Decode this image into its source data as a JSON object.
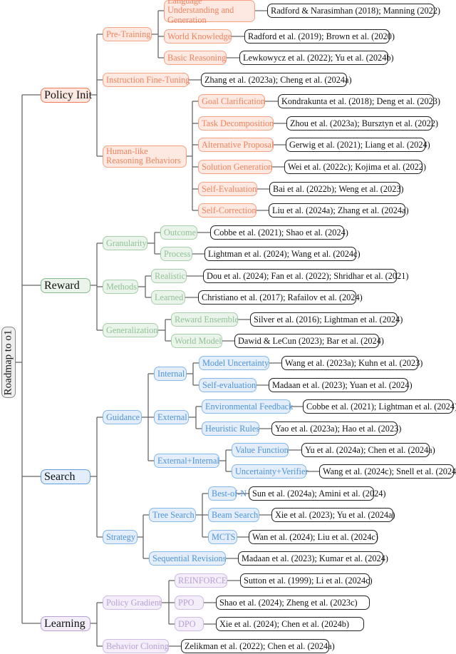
{
  "root": {
    "label": "Roadmap to o1"
  },
  "colors": {
    "policy": {
      "border": "#f4a283",
      "fill": "#fde9e1",
      "text": "#f0825e",
      "l1border": "#f07a55"
    },
    "reward": {
      "border": "#a6cfa9",
      "fill": "#eaf4eb",
      "text": "#92c197",
      "l1border": "#86bb8b"
    },
    "search": {
      "border": "#86b8e8",
      "fill": "#e3eefa",
      "text": "#4f93d9",
      "l1border": "#5f9fe0"
    },
    "learning": {
      "border": "#cdbbe2",
      "fill": "#f3eef9",
      "text": "#b6a1d4",
      "l1border": "#b7a0d6"
    },
    "line": "#666666"
  },
  "branches": [
    {
      "label": "Policy Init",
      "theme": "policy",
      "children": [
        {
          "label": "Pre-Training",
          "children": [
            {
              "label": "Language Understanding and Generation",
              "citations": "Radford & Narasimhan (2018); Manning (2022)"
            },
            {
              "label": "World Knowledge",
              "citations": "Radford et al. (2019); Brown et al. (2020)"
            },
            {
              "label": "Basic Reasoning",
              "citations": "Lewkowycz et al. (2022); Yu et al. (2024b)"
            }
          ]
        },
        {
          "label": "Instruction Fine-Tuning",
          "citations": "Zhang et al. (2023a); Cheng et al. (2024a)"
        },
        {
          "label": "Human-like Reasoning Behaviors",
          "children": [
            {
              "label": "Goal Clarification",
              "citations": "Kondrakunta et al. (2018); Deng et al. (2023)"
            },
            {
              "label": "Task Decomposition",
              "citations": "Zhou et al. (2023a); Bursztyn et al. (2022)"
            },
            {
              "label": "Alternative Proposal",
              "citations": "Gerwig et al. (2021); Liang et al. (2024)"
            },
            {
              "label": "Solution Generation",
              "citations": "Wei et al. (2022c); Kojima et al. (2022)"
            },
            {
              "label": "Self-Evaluation",
              "citations": "Bai et al. (2022b); Weng et al. (2023)"
            },
            {
              "label": "Self-Correction",
              "citations": "Liu et al. (2024a); Zhang et al. (2024a)"
            }
          ]
        }
      ]
    },
    {
      "label": "Reward",
      "theme": "reward",
      "children": [
        {
          "label": "Granularity",
          "children": [
            {
              "label": "Outcome",
              "citations": "Cobbe et al. (2021); Shao et al. (2024)"
            },
            {
              "label": "Process",
              "citations": "Lightman et al. (2024); Wang et al. (2024c)"
            }
          ]
        },
        {
          "label": "Methods",
          "children": [
            {
              "label": "Realistic",
              "citations": "Dou et al. (2024); Fan et al. (2022); Shridhar et al. (2021)"
            },
            {
              "label": "Learned",
              "citations": "Christiano et al. (2017); Rafailov et al. (2024)"
            }
          ]
        },
        {
          "label": "Generalization",
          "children": [
            {
              "label": "Reward Ensemble",
              "citations": "Silver et al. (2016); Lightman et al. (2024)"
            },
            {
              "label": "World Model",
              "citations": "Dawid & LeCun (2023); Bar et al. (2024)"
            }
          ]
        }
      ]
    },
    {
      "label": "Search",
      "theme": "search",
      "children": [
        {
          "label": "Guidance",
          "children": [
            {
              "label": "Internal",
              "children": [
                {
                  "label": "Model Uncertainty",
                  "citations": "Wang et al. (2023a); Kuhn et al. (2023)"
                },
                {
                  "label": "Self-evaluation",
                  "citations": "Madaan et al. (2023); Yuan et al. (2024)"
                }
              ]
            },
            {
              "label": "External",
              "children": [
                {
                  "label": "Environmental Feedback",
                  "citations": "Cobbe et al. (2021); Lightman et al. (2024)"
                },
                {
                  "label": "Heuristic Rules",
                  "citations": "Yao et al. (2023a); Hao et al. (2023)"
                }
              ]
            },
            {
              "label": "External+Internal",
              "children": [
                {
                  "label": "Value Function",
                  "citations": "Yu et al. (2024a); Chen et al. (2024a)"
                },
                {
                  "label": "Uncertainty+Verifier",
                  "citations": "Wang et al. (2024c); Snell et al. (2024)"
                }
              ]
            }
          ]
        },
        {
          "label": "Strategy",
          "children": [
            {
              "label": "Tree Search",
              "children": [
                {
                  "label": "Best-of-N",
                  "citations": "Sun et al. (2024a); Amini et al. (2024)"
                },
                {
                  "label": "Beam Search",
                  "citations": "Xie et al. (2023); Yu et al. (2024a)"
                },
                {
                  "label": "MCTS",
                  "citations": "Wan et al. (2024); Liu et al. (2024c)"
                }
              ]
            },
            {
              "label": "Sequential Revisions",
              "citations": "Madaan et al. (2023); Kumar et al. (2024)"
            }
          ]
        }
      ]
    },
    {
      "label": "Learning",
      "theme": "learning",
      "children": [
        {
          "label": "Policy Gradient",
          "children": [
            {
              "label": "REINFORCE",
              "citations": "Sutton et al. (1999); Li et al. (2024c)"
            },
            {
              "label": "PPO",
              "citations": "Shao et al. (2024); Zheng et al. (2023c)"
            },
            {
              "label": "DPO",
              "citations": "Xie et al. (2024); Chen et al. (2024b)"
            }
          ]
        },
        {
          "label": "Behavior Cloning",
          "citations": "Zelikman et al. (2022); Chen et al. (2024a)"
        }
      ]
    }
  ]
}
